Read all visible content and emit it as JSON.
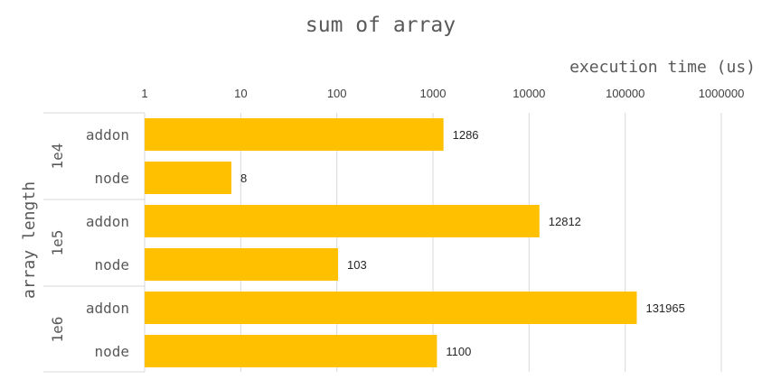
{
  "chart_data": {
    "type": "bar",
    "orientation": "horizontal",
    "title": "sum of array",
    "xlabel": "execution time (us)",
    "ylabel": "array length",
    "x_scale": "log",
    "xlim": [
      1,
      1000000
    ],
    "x_ticks": [
      "1",
      "10",
      "100",
      "1000",
      "10000",
      "100000",
      "1000000"
    ],
    "groups": [
      {
        "label": "1e4",
        "bars": [
          {
            "label": "addon",
            "value": 1286,
            "value_label": "1286"
          },
          {
            "label": "node",
            "value": 8,
            "value_label": "8"
          }
        ]
      },
      {
        "label": "1e5",
        "bars": [
          {
            "label": "addon",
            "value": 12812,
            "value_label": "12812"
          },
          {
            "label": "node",
            "value": 103,
            "value_label": "103"
          }
        ]
      },
      {
        "label": "1e6",
        "bars": [
          {
            "label": "addon",
            "value": 131965,
            "value_label": "131965"
          },
          {
            "label": "node",
            "value": 1100,
            "value_label": "1100"
          }
        ]
      }
    ],
    "grid": true,
    "legend": "none",
    "colors": {
      "bar": "#FFC000",
      "grid": "#D9D9D9",
      "text": "#595959"
    }
  }
}
